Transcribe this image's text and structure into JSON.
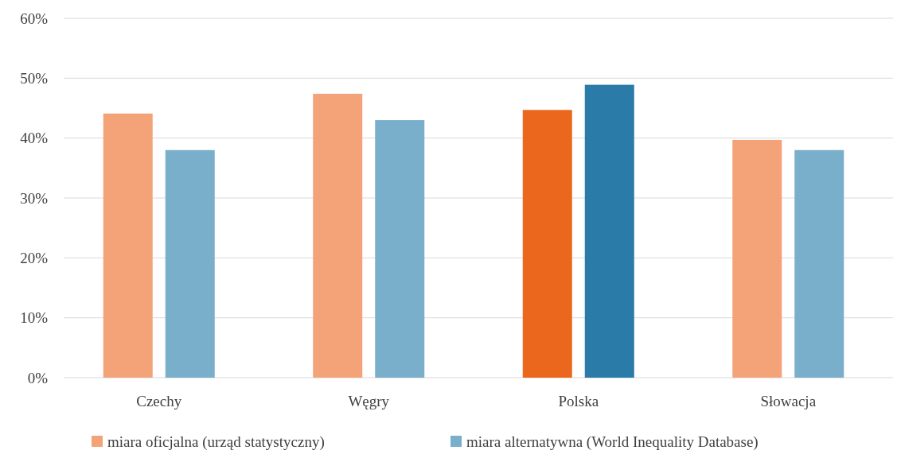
{
  "chart_data": {
    "type": "bar",
    "categories": [
      "Czechy",
      "Węgry",
      "Polska",
      "Słowacja"
    ],
    "series": [
      {
        "name": "miara oficjalna (urząd statystyczny)",
        "color": "#f4a379",
        "colors": [
          "#f4a379",
          "#f4a379",
          "#ec671e",
          "#f4a379"
        ],
        "values": [
          44.1,
          47.4,
          44.7,
          39.7
        ]
      },
      {
        "name": "miara alternatywna (World Inequality Database)",
        "color": "#7aafcb",
        "colors": [
          "#7aafcb",
          "#7aafcb",
          "#2a7ba8",
          "#7aafcb"
        ],
        "values": [
          38,
          43,
          48.9,
          38
        ]
      }
    ],
    "ylim": [
      0,
      60
    ],
    "yticks": [
      {
        "value": 0,
        "label": "0%"
      },
      {
        "value": 10,
        "label": "10%"
      },
      {
        "value": 20,
        "label": "20%"
      },
      {
        "value": 30,
        "label": "30%"
      },
      {
        "value": 40,
        "label": "40%"
      },
      {
        "value": 50,
        "label": "50%"
      },
      {
        "value": 60,
        "label": "60%"
      }
    ],
    "grid": "y",
    "legend": "bottom"
  }
}
